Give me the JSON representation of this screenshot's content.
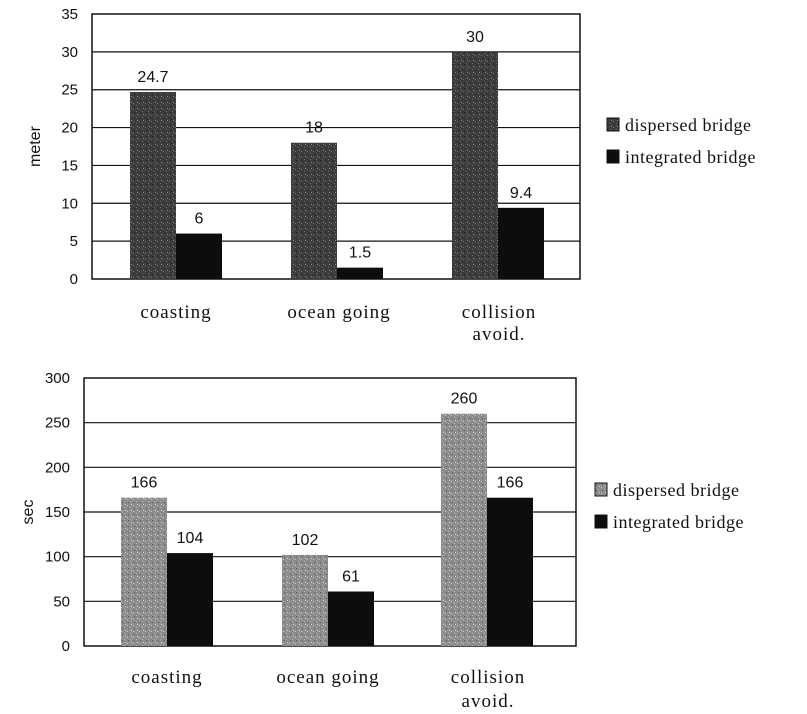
{
  "chart_data": [
    {
      "type": "bar",
      "ylabel": "meter",
      "ylim": [
        0,
        35
      ],
      "yticks": [
        0,
        5,
        10,
        15,
        20,
        25,
        30,
        35
      ],
      "grid": true,
      "legend_position": "right",
      "categories": [
        {
          "lines": [
            "coasting"
          ]
        },
        {
          "lines": [
            "ocean going"
          ]
        },
        {
          "lines": [
            "collision",
            "avoid."
          ]
        }
      ],
      "series": [
        {
          "name": "dispersed bridge",
          "values": [
            24.7,
            18,
            30
          ],
          "labels": [
            "24.7",
            "18",
            "30"
          ],
          "color": "#4a4a4a"
        },
        {
          "name": "integrated bridge",
          "values": [
            6,
            1.5,
            9.4
          ],
          "labels": [
            "6",
            "1.5",
            "9.4"
          ],
          "color": "#0d0d0d"
        }
      ]
    },
    {
      "type": "bar",
      "ylabel": "sec",
      "ylim": [
        0,
        300
      ],
      "yticks": [
        0,
        50,
        100,
        150,
        200,
        250,
        300
      ],
      "grid": true,
      "legend_position": "right",
      "categories": [
        {
          "lines": [
            "coasting"
          ]
        },
        {
          "lines": [
            "ocean going"
          ]
        },
        {
          "lines": [
            "collision",
            "avoid."
          ]
        }
      ],
      "series": [
        {
          "name": "dispersed bridge",
          "values": [
            166,
            102,
            260
          ],
          "labels": [
            "166",
            "102",
            "260"
          ],
          "color": "#8a8a8a"
        },
        {
          "name": "integrated bridge",
          "values": [
            104,
            61,
            166
          ],
          "labels": [
            "104",
            "61",
            "166"
          ],
          "color": "#0d0d0d"
        }
      ]
    }
  ]
}
